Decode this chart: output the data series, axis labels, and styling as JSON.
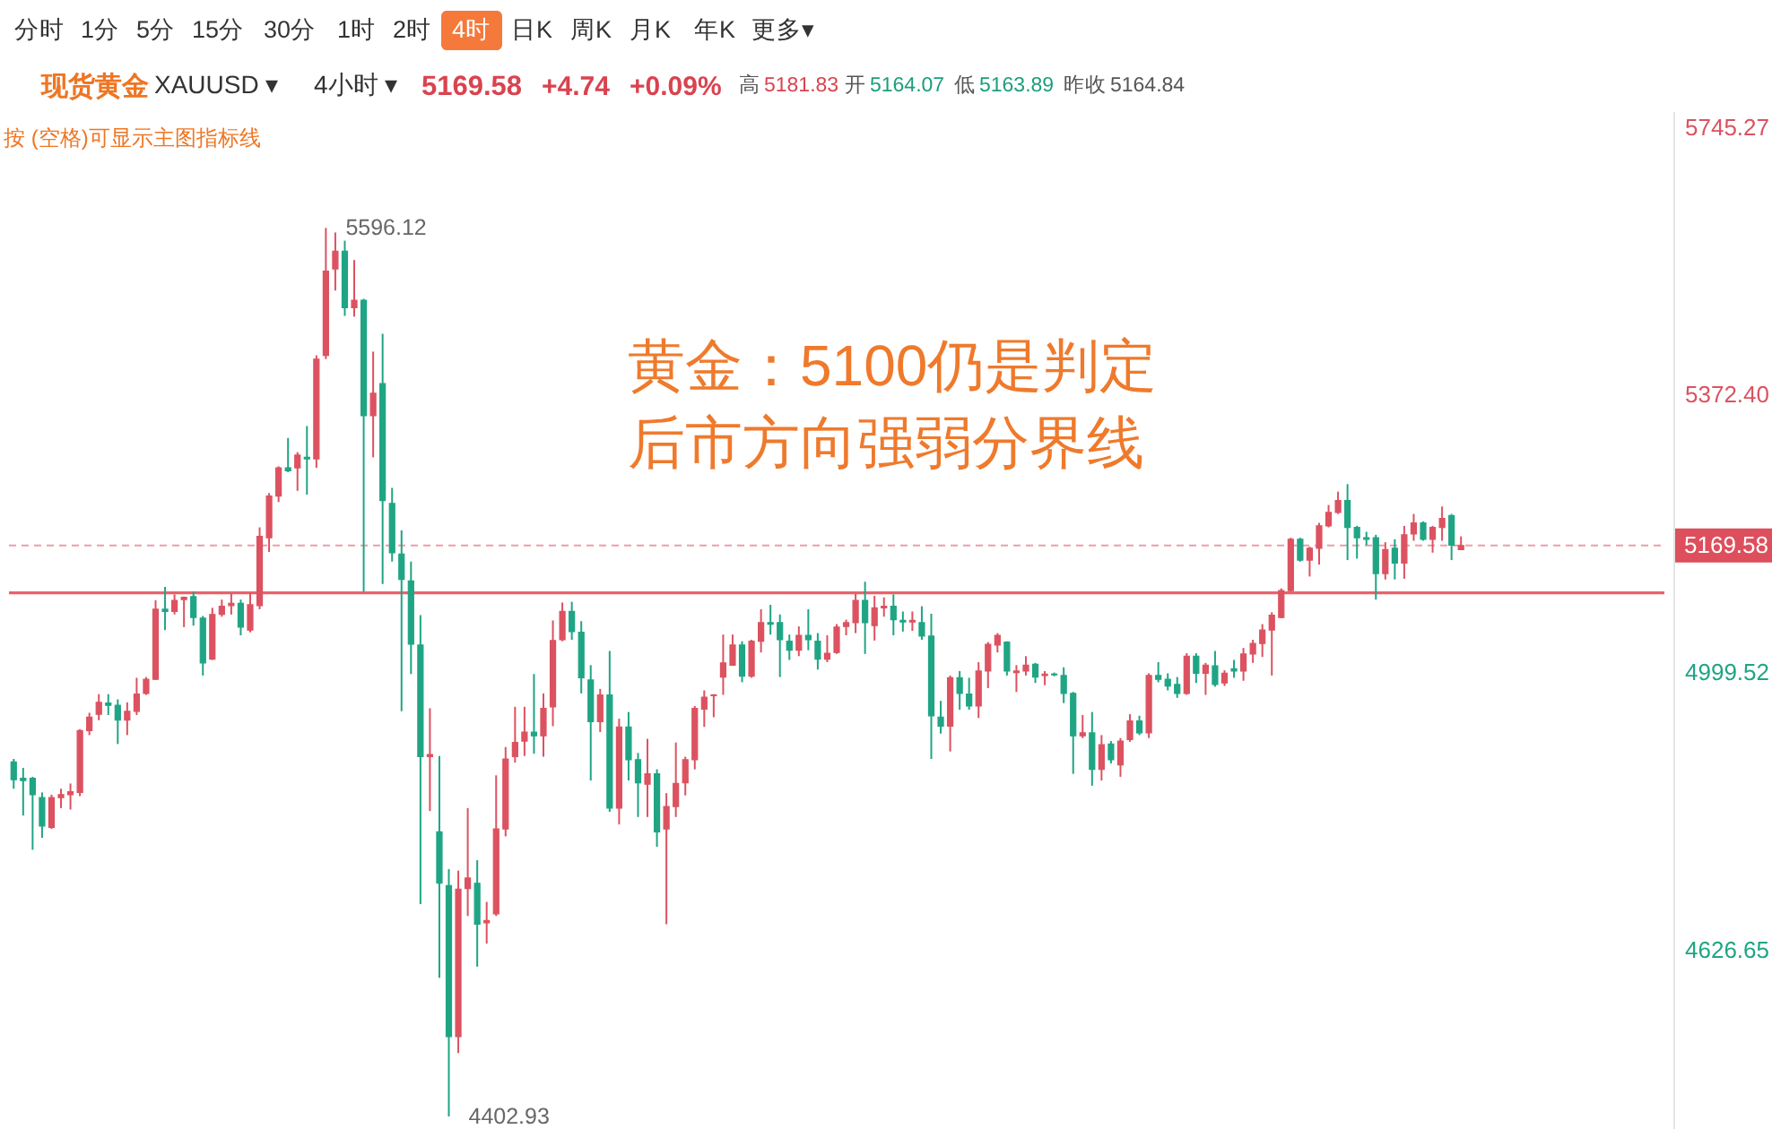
{
  "chart_data": {
    "type": "candlestick",
    "title": "黄金：5100仍是判定",
    "subtitle": "后市方向强弱分界线",
    "annotations": [
      "分时",
      "1分",
      "5分",
      "15分",
      "30分",
      "1时",
      "2时",
      "4时",
      "日K",
      "周K",
      "月K",
      "年K",
      "更多▾",
      "现货黄金",
      "XAUUSD ▾",
      "4小时 ▾",
      "5169.58",
      "+4.74",
      "+0.09%",
      "高",
      "5181.83",
      "开",
      "5164.07",
      "低",
      "5163.89",
      "昨收",
      "5164.84",
      "按 (空格)可显示主图指标线",
      "5596.12",
      "4402.93"
    ],
    "categories": [
      null,
      null,
      null,
      null,
      null,
      null,
      null,
      null,
      null,
      null,
      null,
      null,
      null,
      null,
      null,
      null,
      null,
      null,
      null,
      null,
      null,
      null,
      null,
      null,
      null,
      null,
      null,
      null,
      null,
      null,
      null,
      null,
      null,
      null,
      null,
      null,
      null,
      null,
      null,
      null,
      null,
      null,
      null,
      null,
      null,
      null,
      null,
      null,
      null,
      null,
      null,
      null,
      null,
      null,
      null,
      null,
      null,
      null,
      null,
      null,
      null,
      null,
      null,
      null,
      null,
      null,
      null,
      null,
      null,
      null,
      null,
      null,
      null,
      null,
      null,
      null,
      null,
      null,
      null,
      null,
      null,
      null,
      null,
      null,
      null,
      null,
      null,
      null,
      null,
      null,
      null,
      null,
      null,
      null,
      null,
      null,
      null,
      null,
      null,
      null,
      null,
      null,
      null,
      null,
      null,
      null,
      null,
      null,
      null,
      null,
      null,
      null,
      null,
      null,
      null,
      null,
      null,
      null,
      null,
      null,
      null,
      null,
      null,
      null,
      null,
      null,
      null,
      null,
      null,
      null,
      null,
      null,
      null,
      null,
      null,
      null,
      null,
      null,
      null,
      null,
      null,
      null,
      null,
      null,
      null,
      null,
      null,
      null,
      null,
      null,
      null,
      null,
      null,
      null,
      null,
      null,
      null,
      null,
      null,
      null,
      null,
      null,
      null,
      null,
      null,
      null,
      null,
      null,
      null,
      null,
      null,
      null,
      null,
      null,
      null
    ],
    "ohlc": [
      [
        4879,
        4883,
        4843,
        4855
      ],
      [
        4857,
        4871,
        4807,
        4854
      ],
      [
        4857,
        4859,
        4761,
        4835
      ],
      [
        4831,
        4838,
        4777,
        4793
      ],
      [
        4791,
        4835,
        4789,
        4831
      ],
      [
        4831,
        4843,
        4817,
        4835
      ],
      [
        4835,
        4850,
        4815,
        4839
      ],
      [
        4838,
        4923,
        4833,
        4921
      ],
      [
        4921,
        4945,
        4915,
        4939
      ],
      [
        4943,
        4970,
        4935,
        4959
      ],
      [
        4958,
        4970,
        4942,
        4955
      ],
      [
        4955,
        4963,
        4903,
        4935
      ],
      [
        4935,
        4959,
        4915,
        4947
      ],
      [
        4947,
        4992,
        4942,
        4970
      ],
      [
        4971,
        4993,
        4969,
        4990
      ],
      [
        4990,
        5096,
        4989,
        5084
      ],
      [
        5084,
        5114,
        5056,
        5081
      ],
      [
        5081,
        5104,
        5077,
        5096
      ],
      [
        5097,
        5101,
        5060,
        5100
      ],
      [
        5101,
        5108,
        5062,
        5073
      ],
      [
        5072,
        5075,
        4995,
        5012
      ],
      [
        5017,
        5086,
        5016,
        5077
      ],
      [
        5077,
        5097,
        5074,
        5088
      ],
      [
        5089,
        5105,
        5077,
        5092
      ],
      [
        5092,
        5097,
        5049,
        5060
      ],
      [
        5056,
        5106,
        5053,
        5090
      ],
      [
        5089,
        5194,
        5084,
        5182
      ],
      [
        5180,
        5240,
        5161,
        5236
      ],
      [
        5236,
        5276,
        5228,
        5274
      ],
      [
        5274,
        5314,
        5268,
        5270
      ],
      [
        5274,
        5295,
        5243,
        5291
      ],
      [
        5288,
        5330,
        5238,
        5286
      ],
      [
        5286,
        5425,
        5274,
        5420
      ],
      [
        5425,
        5596.12,
        5420,
        5538
      ],
      [
        5541,
        5590,
        5512,
        5565
      ],
      [
        5565,
        5579,
        5478,
        5489
      ],
      [
        5489,
        5553,
        5477,
        5499
      ],
      [
        5499,
        5501,
        5108,
        5344
      ],
      [
        5344,
        5430,
        5288,
        5374
      ],
      [
        5387,
        5454,
        5118,
        5230
      ],
      [
        5226,
        5247,
        5148,
        5160
      ],
      [
        5158,
        5190,
        4947,
        5124
      ],
      [
        5122,
        5148,
        4997,
        5037
      ],
      [
        5036,
        5076,
        4688,
        4886
      ],
      [
        4886,
        4951,
        4813,
        4889
      ],
      [
        4785,
        4887,
        4589,
        4716
      ],
      [
        4713,
        4735,
        4402.93,
        4510
      ],
      [
        4510,
        4733,
        4488,
        4708
      ],
      [
        4709,
        4817,
        4672,
        4723
      ],
      [
        4716,
        4747,
        4604,
        4661
      ],
      [
        4663,
        4691,
        4635,
        4666
      ],
      [
        4675,
        4861,
        4672,
        4789
      ],
      [
        4789,
        4899,
        4779,
        4883
      ],
      [
        4886,
        4953,
        4878,
        4905
      ],
      [
        4907,
        4953,
        4887,
        4919
      ],
      [
        4919,
        4997,
        4890,
        4914
      ],
      [
        4914,
        4971,
        4886,
        4951
      ],
      [
        4953,
        5069,
        4927,
        5042
      ],
      [
        5043,
        5093,
        5041,
        5081
      ],
      [
        5081,
        5094,
        5043,
        5054
      ],
      [
        5053,
        5068,
        4971,
        4992
      ],
      [
        4989,
        5009,
        4854,
        4933
      ],
      [
        4933,
        4977,
        4919,
        4969
      ],
      [
        4969,
        5028,
        4812,
        4817
      ],
      [
        4817,
        4937,
        4795,
        4926
      ],
      [
        4926,
        4946,
        4854,
        4882
      ],
      [
        4882,
        4891,
        4805,
        4851
      ],
      [
        4849,
        4910,
        4805,
        4863
      ],
      [
        4863,
        4869,
        4765,
        4785
      ],
      [
        4789,
        4837,
        4661,
        4819
      ],
      [
        4819,
        4905,
        4805,
        4850
      ],
      [
        4851,
        4886,
        4834,
        4882
      ],
      [
        4882,
        4954,
        4869,
        4951
      ],
      [
        4950,
        4975,
        4926,
        4966
      ],
      [
        4968,
        4970,
        4939,
        4969
      ],
      [
        4993,
        5050,
        4969,
        5012
      ],
      [
        5009,
        5050,
        5008,
        5036
      ],
      [
        5036,
        5041,
        4986,
        4994
      ],
      [
        4994,
        5043,
        4992,
        5041
      ],
      [
        5041,
        5084,
        5026,
        5066
      ],
      [
        5066,
        5090,
        5050,
        5064
      ],
      [
        5066,
        5077,
        4993,
        5043
      ],
      [
        5041,
        5050,
        5016,
        5029
      ],
      [
        5029,
        5061,
        5021,
        5049
      ],
      [
        5049,
        5084,
        5029,
        5043
      ],
      [
        5041,
        5052,
        5003,
        5017
      ],
      [
        5017,
        5049,
        5013,
        5025
      ],
      [
        5026,
        5064,
        5024,
        5060
      ],
      [
        5061,
        5070,
        5049,
        5066
      ],
      [
        5066,
        5105,
        5052,
        5096
      ],
      [
        5096,
        5121,
        5024,
        5066
      ],
      [
        5062,
        5102,
        5042,
        5086
      ],
      [
        5086,
        5100,
        5074,
        5088
      ],
      [
        5088,
        5104,
        5049,
        5070
      ],
      [
        5069,
        5081,
        5054,
        5067
      ],
      [
        5067,
        5081,
        5055,
        5069
      ],
      [
        5066,
        5088,
        5043,
        5048
      ],
      [
        5048,
        5078,
        4883,
        4941
      ],
      [
        4939,
        4961,
        4917,
        4927
      ],
      [
        4927,
        4995,
        4893,
        4992
      ],
      [
        4992,
        5001,
        4949,
        4971
      ],
      [
        4970,
        4992,
        4949,
        4954
      ],
      [
        4954,
        5013,
        4938,
        5001
      ],
      [
        5001,
        5040,
        4978,
        5037
      ],
      [
        5036,
        5052,
        5026,
        5049
      ],
      [
        5040,
        5041,
        4995,
        5001
      ],
      [
        4999,
        5009,
        4973,
        5001
      ],
      [
        5001,
        5021,
        4995,
        5009
      ],
      [
        5010,
        5012,
        4985,
        4993
      ],
      [
        4995,
        5001,
        4982,
        4997
      ],
      [
        4997,
        4999,
        4994,
        4996
      ],
      [
        4995,
        5006,
        4958,
        4971
      ],
      [
        4971,
        4973,
        4863,
        4914
      ],
      [
        4914,
        4942,
        4911,
        4918
      ],
      [
        4918,
        4946,
        4847,
        4869
      ],
      [
        4869,
        4915,
        4854,
        4902
      ],
      [
        4903,
        4907,
        4877,
        4882
      ],
      [
        4875,
        4911,
        4859,
        4907
      ],
      [
        4909,
        4943,
        4906,
        4934
      ],
      [
        4934,
        4941,
        4915,
        4918
      ],
      [
        4918,
        4998,
        4911,
        4995
      ],
      [
        4995,
        5013,
        4986,
        4990
      ],
      [
        4990,
        4998,
        4975,
        4981
      ],
      [
        4983,
        4993,
        4965,
        4971
      ],
      [
        4971,
        5025,
        4969,
        5021
      ],
      [
        5021,
        5025,
        4985,
        4998
      ],
      [
        4998,
        5012,
        4969,
        5009
      ],
      [
        5008,
        5028,
        4980,
        4983
      ],
      [
        4985,
        5002,
        4981,
        4998
      ],
      [
        5004,
        5016,
        4992,
        5001
      ],
      [
        5001,
        5032,
        4988,
        5024
      ],
      [
        5024,
        5043,
        5012,
        5038
      ],
      [
        5038,
        5064,
        5020,
        5056
      ],
      [
        5056,
        5080,
        4995,
        5076
      ],
      [
        5073,
        5112,
        5072,
        5109
      ],
      [
        5109,
        5180,
        5108,
        5178
      ],
      [
        5178,
        5180,
        5148,
        5150
      ],
      [
        5150,
        5168,
        5128,
        5166
      ],
      [
        5166,
        5200,
        5144,
        5196
      ],
      [
        5196,
        5224,
        5194,
        5214
      ],
      [
        5214,
        5242,
        5212,
        5230
      ],
      [
        5230,
        5252,
        5150,
        5194
      ],
      [
        5194,
        5196,
        5152,
        5180
      ],
      [
        5180,
        5188,
        5170,
        5178
      ],
      [
        5180,
        5184,
        5097,
        5132
      ],
      [
        5132,
        5174,
        5124,
        5164
      ],
      [
        5166,
        5178,
        5124,
        5146
      ],
      [
        5146,
        5196,
        5125,
        5184
      ],
      [
        5185,
        5212,
        5176,
        5200
      ],
      [
        5200,
        5202,
        5176,
        5178
      ],
      [
        5178,
        5196,
        5160,
        5194
      ],
      [
        5194,
        5222,
        5176,
        5206
      ],
      [
        5210,
        5212,
        5150,
        5170
      ],
      [
        5164.07,
        5181.83,
        5163.89,
        5169.58
      ],
      null,
      null,
      null,
      null,
      null,
      null,
      null,
      null,
      null,
      null,
      null,
      null,
      null,
      null,
      null,
      null,
      null,
      null,
      null,
      null,
      null
    ],
    "colors": [
      "#1fa584",
      "#1fa584",
      "#1fa584",
      "#1fa584",
      "#dc5260",
      "#dc5260",
      "#dc5260",
      "#dc5260",
      "#dc5260",
      "#dc5260",
      "#1fa584",
      "#1fa584",
      "#dc5260",
      "#dc5260",
      "#dc5260",
      "#dc5260",
      "#1fa584",
      "#dc5260",
      "#dc5260",
      "#1fa584",
      "#1fa584",
      "#dc5260",
      "#dc5260",
      "#dc5260",
      "#1fa584",
      "#dc5260",
      "#dc5260",
      "#dc5260",
      "#dc5260",
      "#1fa584",
      "#dc5260",
      "#1fa584",
      "#dc5260",
      "#dc5260",
      "#dc5260",
      "#1fa584",
      "#dc5260",
      "#1fa584",
      "#dc5260",
      "#1fa584",
      "#1fa584",
      "#1fa584",
      "#1fa584",
      "#1fa584",
      "#dc5260",
      "#1fa584",
      "#1fa584",
      "#dc5260",
      "#dc5260",
      "#1fa584",
      "#dc5260",
      "#dc5260",
      "#dc5260",
      "#dc5260",
      "#dc5260",
      "#1fa584",
      "#dc5260",
      "#dc5260",
      "#dc5260",
      "#1fa584",
      "#1fa584",
      "#1fa584",
      "#dc5260",
      "#1fa584",
      "#dc5260",
      "#1fa584",
      "#1fa584",
      "#dc5260",
      "#1fa584",
      "#dc5260",
      "#dc5260",
      "#dc5260",
      "#dc5260",
      "#dc5260",
      "#dc5260",
      "#dc5260",
      "#dc5260",
      "#1fa584",
      "#dc5260",
      "#dc5260",
      "#1fa584",
      "#1fa584",
      "#1fa584",
      "#dc5260",
      "#1fa584",
      "#1fa584",
      "#dc5260",
      "#dc5260",
      "#dc5260",
      "#dc5260",
      "#1fa584",
      "#dc5260",
      "#dc5260",
      "#1fa584",
      "#1fa584",
      "#dc5260",
      "#1fa584",
      "#1fa584",
      "#1fa584",
      "#dc5260",
      "#1fa584",
      "#1fa584",
      "#dc5260",
      "#dc5260",
      "#dc5260",
      "#1fa584",
      "#dc5260",
      "#dc5260",
      "#1fa584",
      "#dc5260",
      "#1fa584",
      "#1fa584",
      "#1fa584",
      "#dc5260",
      "#1fa584",
      "#dc5260",
      "#1fa584",
      "#dc5260",
      "#dc5260",
      "#1fa584",
      "#dc5260",
      "#1fa584",
      "#1fa584",
      "#1fa584",
      "#dc5260",
      "#1fa584",
      "#dc5260",
      "#1fa584",
      "#dc5260",
      "#1fa584",
      "#dc5260",
      "#dc5260",
      "#dc5260",
      "#dc5260",
      "#dc5260",
      "#dc5260",
      "#1fa584",
      "#dc5260",
      "#dc5260",
      "#dc5260",
      "#dc5260",
      "#1fa584",
      "#1fa584",
      "#1fa584",
      "#1fa584",
      "#dc5260",
      "#1fa584",
      "#dc5260",
      "#dc5260",
      "#1fa584",
      "#dc5260",
      "#dc5260",
      "#1fa584",
      "#dc5260",
      null,
      null,
      null,
      null,
      null,
      null,
      null,
      null,
      null,
      null,
      null,
      null,
      null,
      null,
      null,
      null,
      null,
      null,
      null,
      null,
      null
    ],
    "ylim": [
      4386,
      5753
    ],
    "yticks": [
      4626.65,
      4999.52,
      {
        "value": 5372.4,
        "label": "5372.40"
      },
      5745.27
    ],
    "ref_lines": [
      {
        "axis": "y",
        "value": 5106,
        "color": "#e8626b"
      },
      {
        "axis": "y",
        "value": 5169.58,
        "label": "5169.58",
        "color": "#dd4f5c",
        "line_style": "dashed"
      }
    ],
    "tick_labels": "y"
  }
}
